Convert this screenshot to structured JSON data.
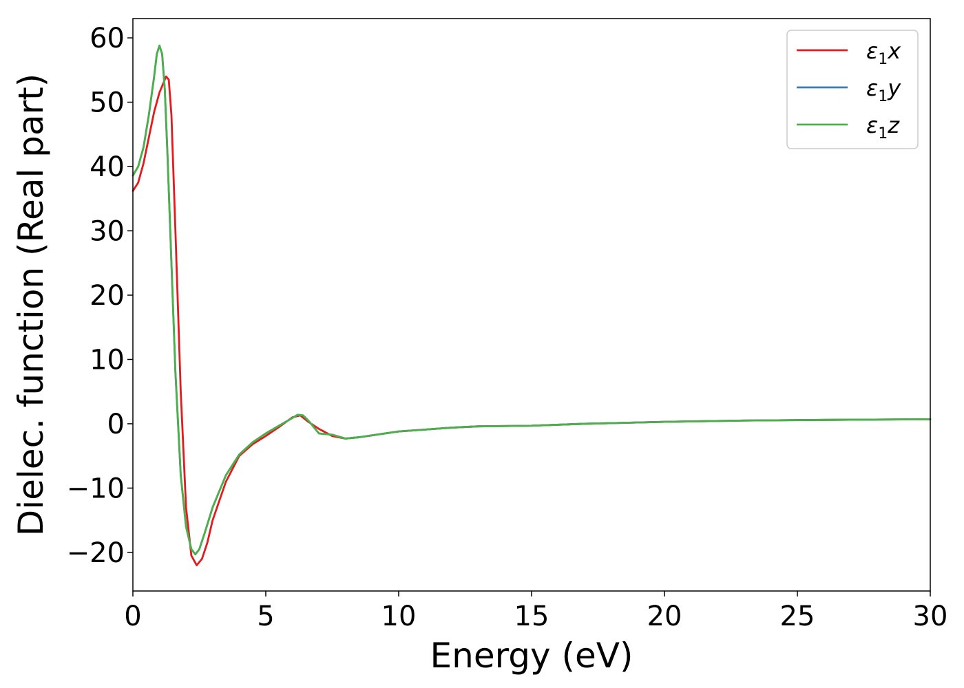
{
  "chart_data": {
    "type": "line",
    "title": "",
    "xlabel": "Energy (eV)",
    "ylabel": "Dielec. function (Real part)",
    "xlim": [
      0,
      30
    ],
    "ylim": [
      -26,
      63
    ],
    "xticks": [
      0,
      5,
      10,
      15,
      20,
      25,
      30
    ],
    "xtick_labels": [
      "0",
      "5",
      "10",
      "15",
      "20",
      "25",
      "30"
    ],
    "yticks": [
      -20,
      -10,
      0,
      10,
      20,
      30,
      40,
      50,
      60
    ],
    "ytick_labels": [
      "−20",
      "−10",
      "0",
      "10",
      "20",
      "30",
      "40",
      "50",
      "60"
    ],
    "grid": false,
    "legend": {
      "position": "top-right",
      "entries": [
        {
          "symbol": "ε",
          "sub": "1",
          "suffix": "x",
          "color": "#e41a1c"
        },
        {
          "symbol": "ε",
          "sub": "1",
          "suffix": "y",
          "color": "#377eb8"
        },
        {
          "symbol": "ε",
          "sub": "1",
          "suffix": "z",
          "color": "#4daf4a"
        }
      ]
    },
    "series": [
      {
        "color": "#e41a1c",
        "x": [
          0,
          0.2,
          0.4,
          0.6,
          0.8,
          1.0,
          1.15,
          1.25,
          1.35,
          1.45,
          1.6,
          1.8,
          2.0,
          2.2,
          2.4,
          2.6,
          2.8,
          3.0,
          3.5,
          4.0,
          4.5,
          5.0,
          5.5,
          6.0,
          6.3,
          6.6,
          7.0,
          7.5,
          8.0,
          8.5,
          9.0,
          10.0,
          11.0,
          12.0,
          13.0,
          14.0,
          15.0,
          17.0,
          20.0,
          23.0,
          26.0,
          30.0
        ],
        "y": [
          36.2,
          37.5,
          40.5,
          44.5,
          48.5,
          51.5,
          53.0,
          54.0,
          53.5,
          48.0,
          30.0,
          5.0,
          -13.0,
          -20.5,
          -22.0,
          -21.0,
          -18.5,
          -15.0,
          -9.0,
          -5.0,
          -3.2,
          -1.9,
          -0.5,
          1.0,
          1.3,
          0.3,
          -0.8,
          -1.9,
          -2.3,
          -2.1,
          -1.8,
          -1.2,
          -0.9,
          -0.6,
          -0.4,
          -0.35,
          -0.3,
          0.0,
          0.3,
          0.5,
          0.6,
          0.7
        ]
      },
      {
        "color": "#377eb8",
        "x": [
          0,
          0.2,
          0.4,
          0.6,
          0.8,
          0.9,
          1.0,
          1.1,
          1.2,
          1.3,
          1.45,
          1.6,
          1.8,
          2.0,
          2.2,
          2.35,
          2.5,
          2.7,
          3.0,
          3.5,
          4.0,
          4.5,
          5.0,
          5.5,
          6.0,
          6.2,
          6.4,
          6.6,
          7.0,
          7.5,
          8.0,
          8.5,
          9.0,
          10.0,
          11.0,
          12.0,
          13.0,
          14.0,
          15.0,
          17.0,
          20.0,
          23.0,
          26.0,
          30.0
        ],
        "y": [
          38.6,
          40.0,
          43.0,
          48.0,
          54.0,
          57.5,
          58.8,
          57.5,
          52.0,
          42.0,
          25.0,
          8.0,
          -8.0,
          -16.0,
          -19.5,
          -20.3,
          -19.5,
          -17.0,
          -13.0,
          -8.0,
          -4.8,
          -2.9,
          -1.5,
          -0.3,
          0.9,
          1.4,
          1.3,
          0.5,
          -1.5,
          -1.7,
          -2.3,
          -2.1,
          -1.8,
          -1.2,
          -0.9,
          -0.6,
          -0.4,
          -0.35,
          -0.3,
          0.0,
          0.3,
          0.5,
          0.6,
          0.7
        ]
      },
      {
        "color": "#4daf4a",
        "x": [
          0,
          0.2,
          0.4,
          0.6,
          0.8,
          0.9,
          1.0,
          1.1,
          1.2,
          1.3,
          1.45,
          1.6,
          1.8,
          2.0,
          2.2,
          2.35,
          2.5,
          2.7,
          3.0,
          3.5,
          4.0,
          4.5,
          5.0,
          5.5,
          6.0,
          6.2,
          6.4,
          6.6,
          7.0,
          7.5,
          8.0,
          8.5,
          9.0,
          10.0,
          11.0,
          12.0,
          13.0,
          14.0,
          15.0,
          17.0,
          20.0,
          23.0,
          26.0,
          30.0
        ],
        "y": [
          38.6,
          40.0,
          43.0,
          48.0,
          54.0,
          57.5,
          58.8,
          57.5,
          52.0,
          42.0,
          25.0,
          8.0,
          -8.0,
          -16.0,
          -19.5,
          -20.3,
          -19.5,
          -17.0,
          -13.0,
          -8.0,
          -4.8,
          -2.9,
          -1.5,
          -0.3,
          0.9,
          1.4,
          1.3,
          0.5,
          -1.5,
          -1.7,
          -2.3,
          -2.1,
          -1.8,
          -1.2,
          -0.9,
          -0.6,
          -0.4,
          -0.35,
          -0.3,
          0.0,
          0.3,
          0.5,
          0.6,
          0.7
        ]
      }
    ]
  }
}
